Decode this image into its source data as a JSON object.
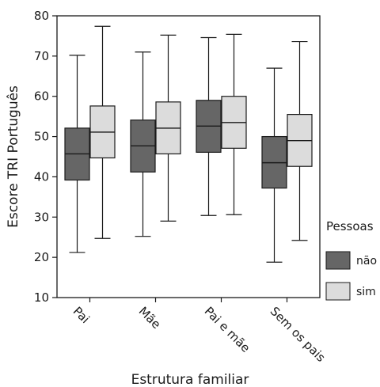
{
  "chart_data": {
    "type": "boxplot",
    "xlabel": "Estrutura familiar",
    "ylabel": "Escore TRI Português",
    "ylim": [
      10,
      80
    ],
    "yticks": [
      10,
      20,
      30,
      40,
      50,
      60,
      70,
      80
    ],
    "categories": [
      "Pai",
      "Mãe",
      "Pai e mãe",
      "Sem os pais"
    ],
    "legend": {
      "title": "Pessoas",
      "position": "right"
    },
    "series": [
      {
        "name": "não",
        "color": "#666666",
        "boxes": [
          {
            "whisker_low": 21.2,
            "q1": 39.2,
            "median": 45.7,
            "q3": 52.1,
            "whisker_high": 70.2
          },
          {
            "whisker_low": 25.2,
            "q1": 41.2,
            "median": 47.7,
            "q3": 54.1,
            "whisker_high": 71.0
          },
          {
            "whisker_low": 30.4,
            "q1": 46.1,
            "median": 52.6,
            "q3": 59.0,
            "whisker_high": 74.6
          },
          {
            "whisker_low": 18.8,
            "q1": 37.2,
            "median": 43.5,
            "q3": 50.0,
            "whisker_high": 67.0
          }
        ]
      },
      {
        "name": "sim",
        "color": "#dcdcdc",
        "boxes": [
          {
            "whisker_low": 24.7,
            "q1": 44.7,
            "median": 51.1,
            "q3": 57.6,
            "whisker_high": 77.4
          },
          {
            "whisker_low": 29.0,
            "q1": 45.7,
            "median": 52.1,
            "q3": 58.6,
            "whisker_high": 75.2
          },
          {
            "whisker_low": 30.6,
            "q1": 47.1,
            "median": 53.5,
            "q3": 60.0,
            "whisker_high": 75.4
          },
          {
            "whisker_low": 24.2,
            "q1": 42.6,
            "median": 49.0,
            "q3": 55.5,
            "whisker_high": 73.6
          }
        ]
      }
    ]
  }
}
